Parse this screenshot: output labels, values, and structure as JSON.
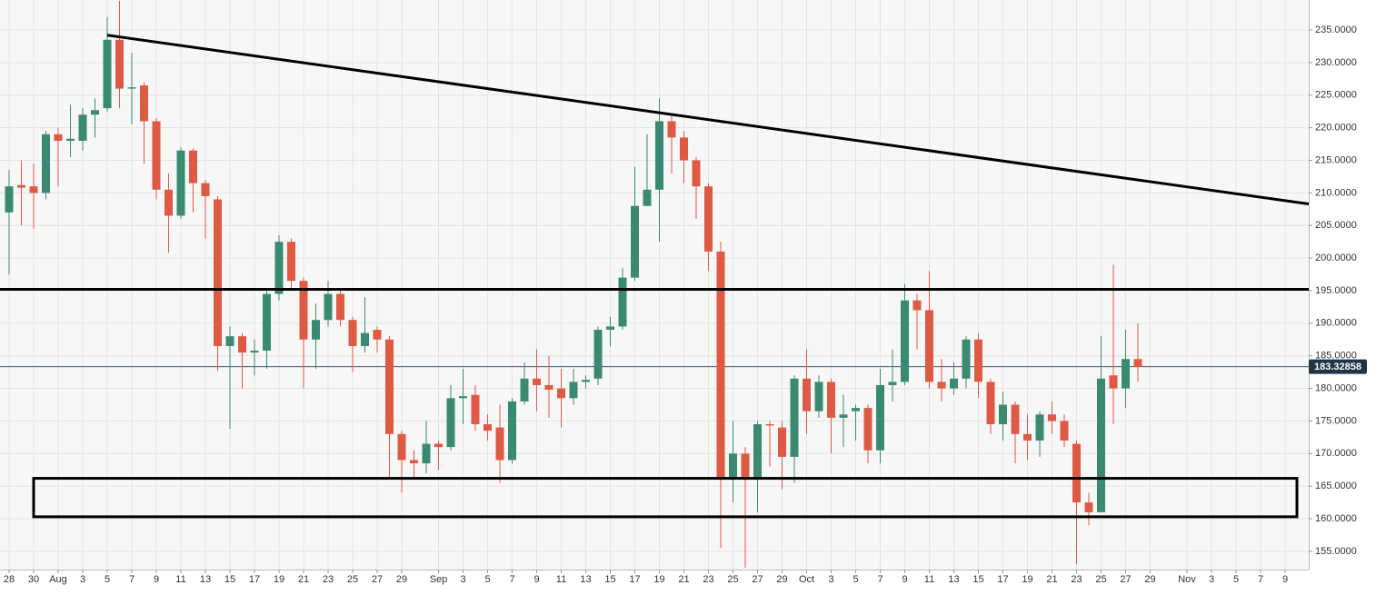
{
  "chart_data": {
    "type": "candlestick",
    "categories": [
      "28",
      null,
      "30",
      null,
      "Aug",
      null,
      "3",
      null,
      "5",
      null,
      "7",
      null,
      "9",
      null,
      "11",
      null,
      "13",
      null,
      "15",
      null,
      "17",
      null,
      "19",
      null,
      "21",
      null,
      "23",
      null,
      "25",
      null,
      "27",
      null,
      "29",
      null,
      null,
      "Sep",
      null,
      "3",
      null,
      "5",
      null,
      "7",
      null,
      "9",
      null,
      "11",
      null,
      "13",
      null,
      "15",
      null,
      "17",
      null,
      "19",
      null,
      "21",
      null,
      "23",
      null,
      "25",
      null,
      "27",
      null,
      "29",
      null,
      "Oct",
      null,
      "3",
      null,
      "5",
      null,
      "7",
      null,
      "9",
      null,
      "11",
      null,
      "13",
      null,
      "15",
      null,
      "17",
      null,
      "19",
      null,
      "21",
      null,
      "23",
      null,
      "25",
      null,
      "27",
      null,
      "29",
      null,
      null,
      "Nov",
      null,
      "3",
      null,
      "5",
      null,
      "7",
      null,
      "9"
    ],
    "open": [
      207,
      211.2,
      211,
      210,
      219,
      218,
      218,
      222,
      223,
      233.5,
      226,
      226.5,
      221,
      210.5,
      206.5,
      216.5,
      211.5,
      209,
      186.5,
      188,
      185.5,
      185.8,
      194.5,
      202.5,
      196.5,
      187.5,
      190.5,
      194.5,
      190.5,
      186.5,
      189,
      187.5,
      173,
      169,
      168.5,
      171.5,
      171,
      178.5,
      179,
      174.5,
      174,
      169,
      178,
      181.5,
      180.5,
      180,
      178.5,
      181,
      181.5,
      189,
      189.5,
      197,
      208,
      210.5,
      221,
      218.5,
      215,
      211,
      201,
      166,
      170,
      166,
      174.5,
      174,
      169.5,
      181.5,
      176.5,
      181,
      175.5,
      176.5,
      177,
      170.5,
      180.5,
      181,
      193.5,
      192,
      181,
      180,
      181.5,
      187.5,
      181,
      174.5,
      177.5,
      173,
      172,
      176,
      175,
      171.5,
      162.5,
      161,
      182,
      180,
      184.5,
      null,
      null,
      null,
      null,
      null,
      null,
      null,
      null,
      null,
      null,
      null,
      null
    ],
    "high": [
      213.5,
      215,
      214.5,
      219.5,
      220,
      223.5,
      223,
      224.5,
      237,
      239.5,
      231.5,
      227,
      221.5,
      213,
      217,
      216.8,
      212,
      209.5,
      189.5,
      188.5,
      187.5,
      195,
      203.5,
      203,
      197,
      193,
      196.5,
      195,
      191,
      194,
      189.5,
      188,
      173.5,
      170.5,
      175,
      172,
      180.5,
      183,
      180.5,
      176,
      177.5,
      178.5,
      184,
      186,
      185,
      183,
      183,
      182,
      189.5,
      191,
      198.5,
      214,
      219,
      224.5,
      222,
      219.5,
      215.5,
      211.5,
      202.5,
      175,
      171,
      175,
      175,
      175,
      182,
      186,
      182,
      181.5,
      179,
      177.5,
      177.5,
      183,
      186,
      196,
      194.5,
      198,
      184.5,
      184,
      188,
      188.5,
      181.5,
      179.5,
      178,
      176,
      176.5,
      178,
      176,
      172,
      164,
      188,
      199,
      189,
      190,
      null,
      null,
      null,
      null,
      null,
      null,
      null,
      null,
      null,
      null,
      null,
      null
    ],
    "low": [
      197.5,
      205,
      204.5,
      209,
      211,
      215.5,
      216.5,
      218.5,
      222.5,
      223,
      220.5,
      214.5,
      209,
      200.8,
      206,
      207,
      203,
      182.7,
      173.8,
      180,
      182,
      183,
      193.5,
      195,
      180,
      183,
      189.5,
      189.5,
      182.5,
      185.5,
      185.5,
      166,
      164,
      166,
      167,
      167.5,
      170.5,
      174.5,
      173.5,
      172,
      165.5,
      168.5,
      177.5,
      176.5,
      175.5,
      174,
      177.5,
      180,
      180.5,
      186.5,
      189,
      196.5,
      208,
      202.5,
      213,
      211.5,
      206,
      198,
      155.5,
      162.5,
      152.5,
      161,
      168,
      164.5,
      165.5,
      173,
      175.5,
      170,
      171,
      172,
      168.5,
      168.5,
      178,
      180.5,
      186,
      180,
      178,
      179,
      180,
      178.5,
      173,
      172,
      168.5,
      169,
      169.5,
      173,
      171,
      153,
      159,
      161,
      174.5,
      177,
      181,
      null,
      null,
      null,
      null,
      null,
      null,
      null,
      null,
      null,
      null,
      null,
      null
    ],
    "close": [
      211,
      210.8,
      210,
      219,
      218,
      218.3,
      222,
      222.7,
      233.5,
      226,
      226.2,
      221,
      210.5,
      206.5,
      216.5,
      211.5,
      209.5,
      186.5,
      188,
      185.5,
      185.8,
      194.5,
      202.5,
      196.5,
      187.5,
      190.5,
      194.5,
      190.5,
      186.5,
      188.5,
      187.5,
      173,
      169,
      168.5,
      171.5,
      171,
      178.5,
      178.8,
      174.5,
      173.5,
      169,
      178,
      181.5,
      180.5,
      179.8,
      178.5,
      181,
      181.3,
      189,
      189.5,
      197,
      208,
      210.5,
      221,
      218.5,
      215,
      211,
      201,
      166,
      170,
      166,
      174.5,
      174.3,
      169.5,
      181.5,
      176.5,
      181,
      175.5,
      176,
      177,
      170.5,
      180.5,
      181,
      193.5,
      192,
      181,
      180,
      181.5,
      187.5,
      181,
      174.5,
      177.5,
      173,
      172,
      176,
      175,
      172,
      162.5,
      161,
      181.5,
      180,
      184.5,
      183.3,
      null,
      null,
      null,
      null,
      null,
      null,
      null,
      null,
      null,
      null,
      null,
      null
    ],
    "up_color": "#3a8a72",
    "down_color": "#df5a44",
    "ylim": [
      152.2,
      239.6
    ],
    "yticks": [
      {
        "value": 155,
        "label": "155.0000"
      },
      {
        "value": 160,
        "label": "160.0000"
      },
      {
        "value": 165,
        "label": "165.0000"
      },
      {
        "value": 170,
        "label": "170.0000"
      },
      {
        "value": 175,
        "label": "175.0000"
      },
      {
        "value": 180,
        "label": "180.0000"
      },
      {
        "value": 185,
        "label": "185.0000"
      },
      {
        "value": 190,
        "label": "190.0000"
      },
      {
        "value": 195,
        "label": "195.0000"
      },
      {
        "value": 200,
        "label": "200.0000"
      },
      {
        "value": 205,
        "label": "205.0000"
      },
      {
        "value": 210,
        "label": "210.0000"
      },
      {
        "value": 215,
        "label": "215.0000"
      },
      {
        "value": 220,
        "label": "220.0000"
      },
      {
        "value": 225,
        "label": "225.0000"
      },
      {
        "value": 230,
        "label": "230.0000"
      },
      {
        "value": 235,
        "label": "235.0000"
      }
    ],
    "grid": true,
    "last_price": 183.32858,
    "resistance": 195.2,
    "trendline": {
      "start": 234.2,
      "end": 208.3
    },
    "zone": [
      160.3,
      166.2
    ]
  }
}
